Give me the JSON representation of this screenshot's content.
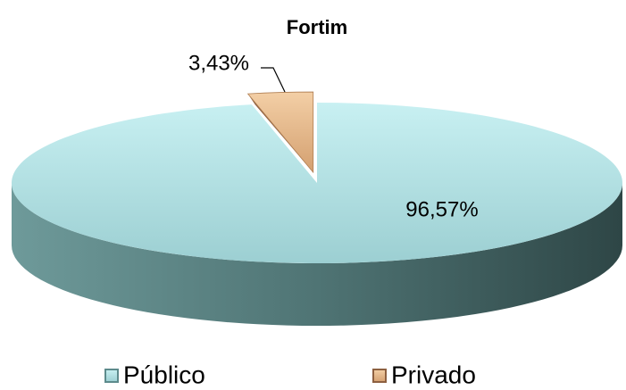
{
  "chart_data": {
    "type": "pie",
    "title": "Fortim",
    "categories": [
      "Público",
      "Privado"
    ],
    "values": [
      96.57,
      3.43
    ],
    "value_labels": [
      "96,57%",
      "3,43%"
    ],
    "colors": [
      "#b4e4e6",
      "#e8b88a"
    ],
    "legend": "bottom"
  }
}
